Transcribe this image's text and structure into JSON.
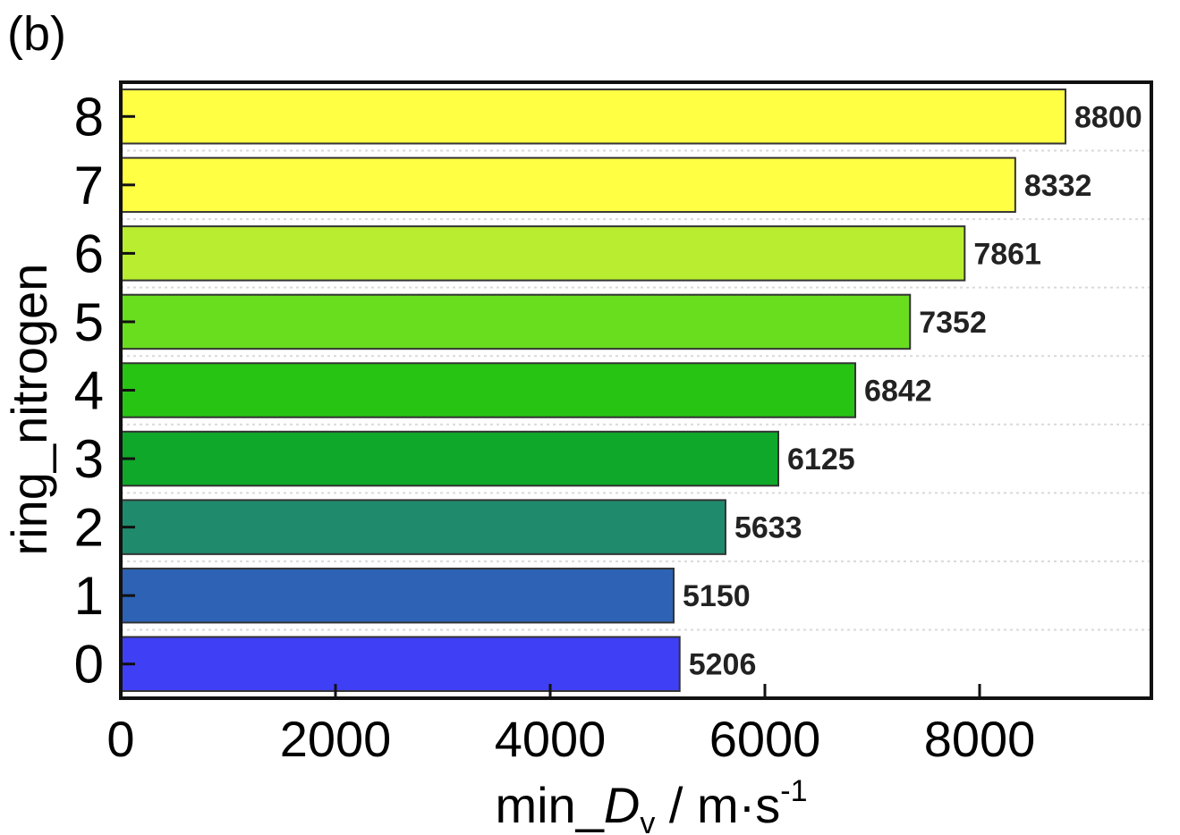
{
  "panel_label": "(b)",
  "chart_data": {
    "type": "bar",
    "orientation": "horizontal",
    "categories": [
      "0",
      "1",
      "2",
      "3",
      "4",
      "5",
      "6",
      "7",
      "8"
    ],
    "values": [
      5206,
      5150,
      5633,
      6125,
      6842,
      7352,
      7861,
      8332,
      8800
    ],
    "data_labels": [
      "5206",
      "5150",
      "5633",
      "6125",
      "6842",
      "7352",
      "7861",
      "8332",
      "8800"
    ],
    "colors": [
      "#3f3ff5",
      "#2d62b4",
      "#1f8b6c",
      "#0fa82a",
      "#28c414",
      "#69de1f",
      "#b8ee2f",
      "#ffff44",
      "#ffff44"
    ],
    "ylabel": "ring_nitrogen",
    "xlabel_parts": {
      "base": "min_",
      "var": "D",
      "sub": "v",
      "unit": " / m·s",
      "sup": "-1"
    },
    "xlim": [
      0,
      9600
    ],
    "xticks": [
      0,
      2000,
      4000,
      6000,
      8000
    ],
    "xtick_labels": [
      "0",
      "2000",
      "4000",
      "6000",
      "8000"
    ],
    "grid": "horizontal dashed"
  }
}
